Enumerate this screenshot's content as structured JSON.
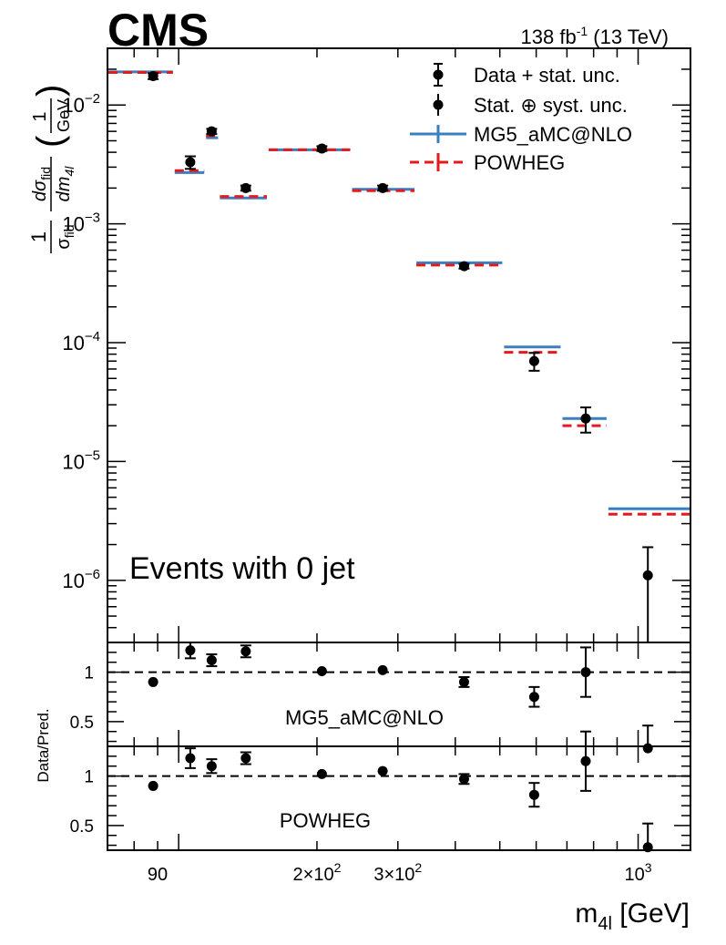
{
  "header": {
    "experiment": "CMS",
    "lumi_main": "138 fb",
    "lumi_sup": "-1",
    "lumi_rest": " (13 TeV)"
  },
  "chart_data": {
    "type": "scatter",
    "x_scale": "log",
    "xlim": [
      70,
      1300
    ],
    "ylim": [
      3e-07,
      0.03
    ],
    "y_scale": "log",
    "xlabel": "m",
    "xlabel_sub": "4l",
    "xlabel_unit": " [GeV]",
    "ylabel": "1/σ_fid dσ_fid/dm_4l (1/GeV)",
    "annotation": "Events with 0 jet",
    "x_tick_labels": [
      {
        "value": 90,
        "base": "90",
        "exp": ""
      },
      {
        "value": 200,
        "base": "2×10",
        "exp": "2"
      },
      {
        "value": 300,
        "base": "3×10",
        "exp": "2"
      },
      {
        "value": 1000,
        "base": "10",
        "exp": "3"
      }
    ],
    "y_tick_labels": [
      {
        "value": 1e-06,
        "base": "10",
        "exp": "−6"
      },
      {
        "value": 1e-05,
        "base": "10",
        "exp": "−5"
      },
      {
        "value": 0.0001,
        "base": "10",
        "exp": "−4"
      },
      {
        "value": 0.001,
        "base": "10",
        "exp": "−3"
      },
      {
        "value": 0.01,
        "base": "10",
        "exp": "−2"
      }
    ],
    "legend": {
      "position": "top-right",
      "entries": [
        "Data + stat. unc.",
        "Stat. ⊕ syst. unc.",
        "MG5_aMC@NLO",
        "POWHEG"
      ]
    },
    "bins": [
      [
        70,
        97.6
      ],
      [
        97.6,
        114.2
      ],
      [
        114.2,
        122.4
      ],
      [
        122.4,
        156.3
      ],
      [
        156.3,
        237.4
      ],
      [
        237.4,
        327.6
      ],
      [
        327.6,
        508.5
      ],
      [
        508.5,
        681.3
      ],
      [
        681.3,
        857.6
      ],
      [
        857.6,
        1300
      ]
    ],
    "data": {
      "name": "Data + stat. unc.",
      "x": [
        88,
        106,
        118,
        140,
        205,
        278,
        418,
        594,
        769,
        1050
      ],
      "y": [
        0.0175,
        0.0033,
        0.006,
        0.002,
        0.0043,
        0.002,
        0.00044,
        7e-05,
        2.3e-05,
        1.1e-06
      ],
      "y_low": [
        0.0165,
        0.0029,
        0.0057,
        0.0019,
        0.0041,
        0.0019,
        0.00042,
        5.8e-05,
        1.75e-05,
        3e-07
      ],
      "y_high": [
        0.0185,
        0.0037,
        0.0063,
        0.0021,
        0.0045,
        0.0021,
        0.00046,
        8.2e-05,
        2.85e-05,
        1.9e-06
      ]
    },
    "series": [
      {
        "name": "MG5_aMC@NLO",
        "color": "#3a7fc1",
        "style": "solid",
        "values": [
          0.019,
          0.0027,
          0.0053,
          0.00165,
          0.0042,
          0.00195,
          0.00047,
          9.2e-05,
          2.3e-05,
          4e-06
        ]
      },
      {
        "name": "POWHEG",
        "color": "#e41a1c",
        "style": "dashed",
        "values": [
          0.0188,
          0.0028,
          0.0055,
          0.0017,
          0.0042,
          0.0019,
          0.00045,
          8.3e-05,
          2e-05,
          3.6e-06
        ]
      }
    ],
    "ratio_panels": [
      {
        "label": "MG5_aMC@NLO",
        "ylabel": "Data/Pred.",
        "ylim": [
          0.25,
          1.3
        ],
        "y_tick_labels": [
          {
            "value": 0.5,
            "text": "0.5"
          },
          {
            "value": 1,
            "text": "1"
          }
        ],
        "values": [
          0.9,
          1.22,
          1.12,
          1.21,
          1.01,
          1.02,
          0.9,
          0.75,
          1.0,
          0.23
        ],
        "err_low": [
          0.02,
          0.08,
          0.06,
          0.06,
          0.02,
          0.02,
          0.05,
          0.1,
          0.25,
          0.23
        ],
        "err_high": [
          0.02,
          0.08,
          0.06,
          0.06,
          0.02,
          0.02,
          0.05,
          0.1,
          0.25,
          0.23
        ]
      },
      {
        "label": "POWHEG",
        "ylabel": "",
        "ylim": [
          0.25,
          1.3
        ],
        "y_tick_labels": [
          {
            "value": 0.5,
            "text": "0.5"
          },
          {
            "value": 1,
            "text": "1"
          }
        ],
        "values": [
          0.9,
          1.18,
          1.1,
          1.18,
          1.02,
          1.05,
          0.97,
          0.81,
          1.15,
          0.28
        ],
        "err_low": [
          0.02,
          0.1,
          0.07,
          0.06,
          0.02,
          0.02,
          0.05,
          0.12,
          0.3,
          0.24
        ],
        "err_high": [
          0.02,
          0.1,
          0.07,
          0.06,
          0.02,
          0.02,
          0.05,
          0.12,
          0.3,
          0.24
        ]
      }
    ]
  }
}
